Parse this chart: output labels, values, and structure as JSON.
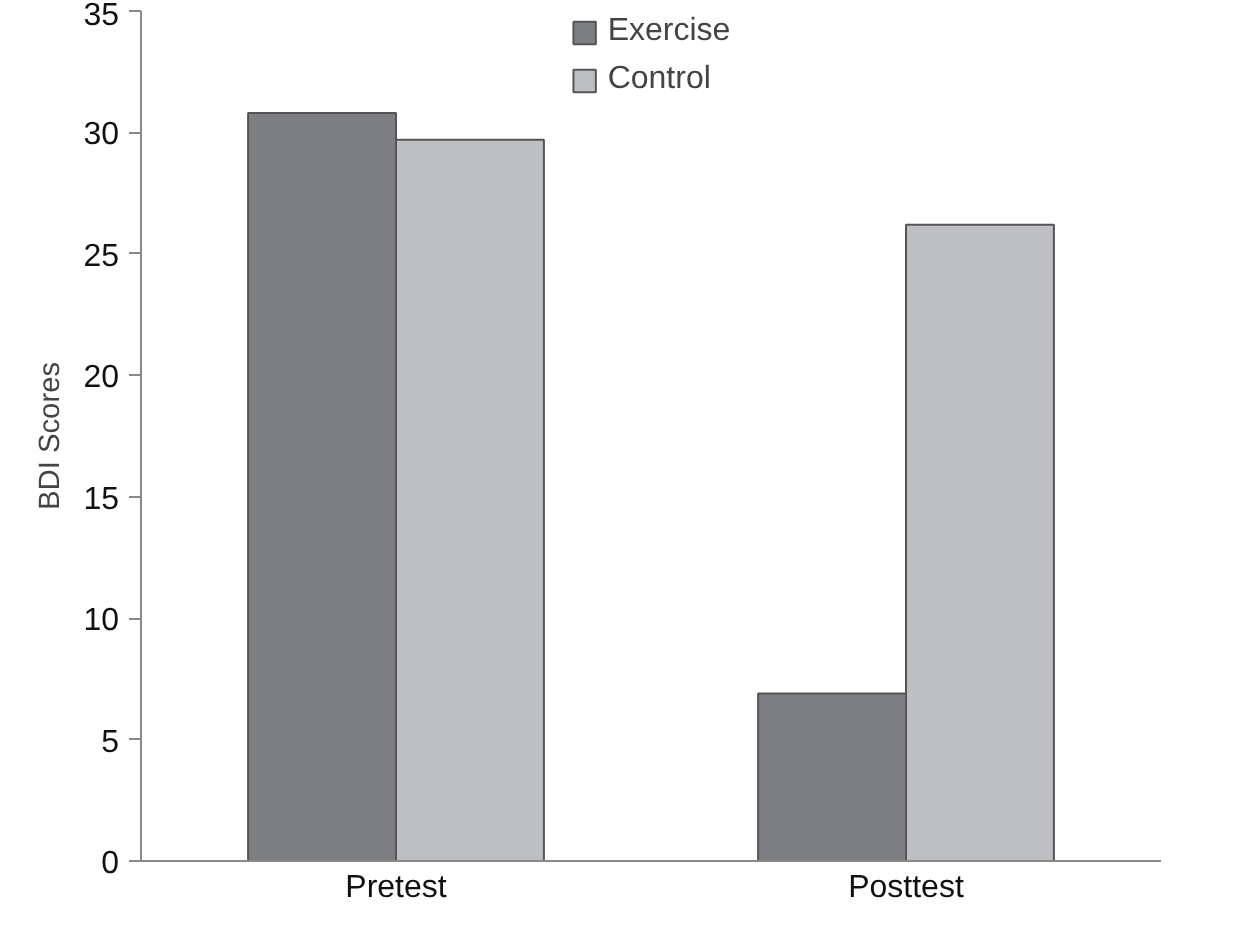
{
  "chart_data": {
    "type": "bar",
    "ylabel": "BDI Scores",
    "categories": [
      "Pretest",
      "Posttest"
    ],
    "series": [
      {
        "name": "Exercise",
        "color": "#7e7f83",
        "values": [
          30.8,
          6.9
        ]
      },
      {
        "name": "Control",
        "color": "#bebfc3",
        "values": [
          29.7,
          26.2
        ]
      }
    ],
    "ylim": [
      0,
      35
    ],
    "yticks": [
      0,
      5,
      10,
      15,
      20,
      25,
      30,
      35
    ],
    "grid": false,
    "legend": "top"
  }
}
